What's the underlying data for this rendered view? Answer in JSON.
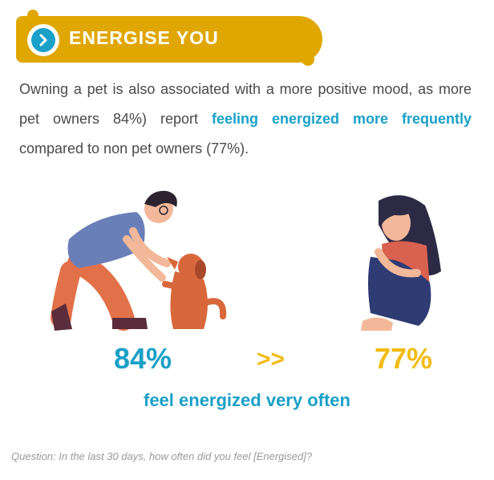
{
  "header": {
    "title": "ENERGISE YOU",
    "icon": "chevron-right-icon"
  },
  "body": {
    "part1": "Owning a pet is also associated with a more positive mood, as more pet owners 84%) report ",
    "highlight": "feeling energized more frequently",
    "part2": " compared to non pet owners (77%)."
  },
  "stats": {
    "owner_value": "84%",
    "compare_symbol": ">>",
    "non_owner_value": "77%",
    "caption": "feel energized very often"
  },
  "footer": {
    "question": "Question: In the last 30 days, how often did you feel [Energised]?"
  },
  "colors": {
    "accent_yellow": "#E0A702",
    "accent_blue": "#1BA0C8",
    "stat_yellow": "#F2BB15"
  }
}
